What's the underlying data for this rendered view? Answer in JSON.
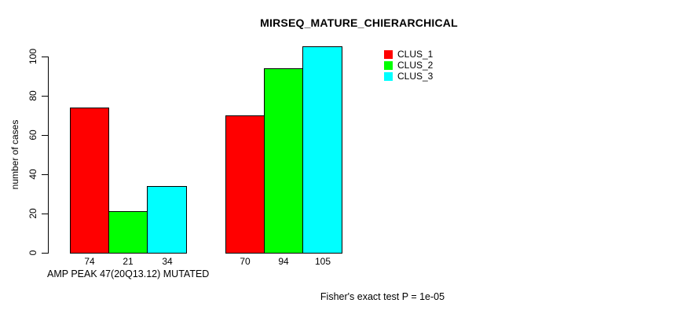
{
  "chart_data": {
    "type": "bar",
    "title": "MIRSEQ_MATURE_CHIERARCHICAL",
    "ylabel": "number of cases",
    "xlabel": "AMP PEAK 47(20Q13.12) MUTATED",
    "footnote": "Fisher's exact test P = 1e-05",
    "groups": 2,
    "series": [
      {
        "name": "CLUS_1",
        "color": "#ff0000",
        "values": [
          74,
          70
        ]
      },
      {
        "name": "CLUS_2",
        "color": "#00ff00",
        "values": [
          21,
          94
        ]
      },
      {
        "name": "CLUS_3",
        "color": "#00ffff",
        "values": [
          34,
          105
        ]
      }
    ],
    "bar_value_labels": [
      [
        74,
        21,
        34
      ],
      [
        70,
        94,
        105
      ]
    ],
    "yticks": [
      0,
      20,
      40,
      60,
      80,
      100
    ],
    "ylim": [
      0,
      105
    ],
    "grid": false,
    "bar_border_color": "#000000",
    "text_color": "#000000",
    "background_color": "#ffffff",
    "legend_position": "top-right"
  }
}
